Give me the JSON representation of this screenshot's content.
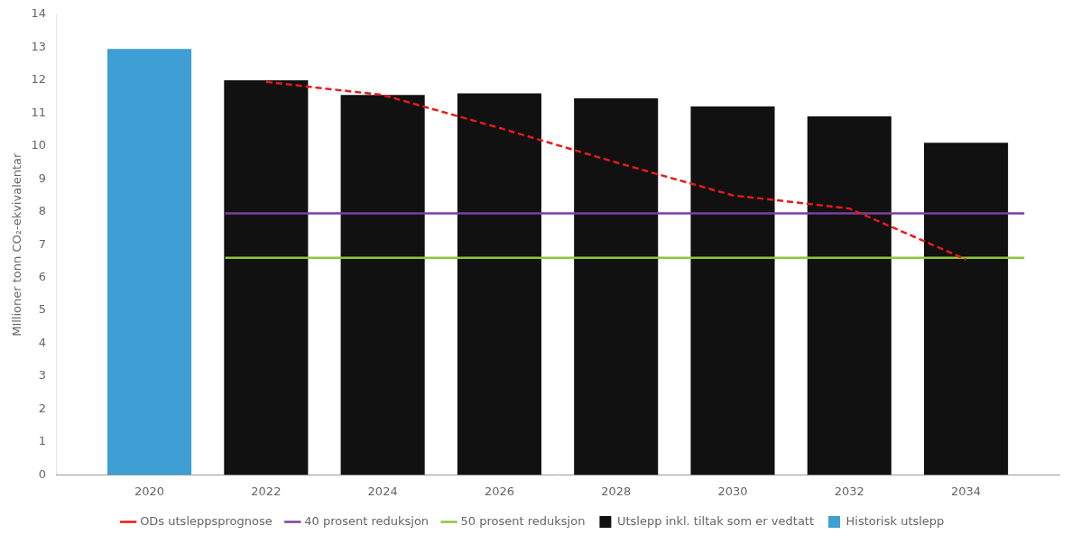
{
  "chart_data": {
    "type": "bar",
    "x": [
      2020,
      2022,
      2024,
      2026,
      2028,
      2030,
      2032,
      2034
    ],
    "ylabel": "MIllioner tonn CO₂-ekvivalentar",
    "xlim": [
      2018.4,
      2035.6
    ],
    "xticks": [
      2020,
      2022,
      2024,
      2026,
      2028,
      2030,
      2032,
      2034
    ],
    "ylim": [
      0,
      14
    ],
    "yticks": [
      0,
      1,
      2,
      3,
      4,
      5,
      6,
      7,
      8,
      9,
      10,
      11,
      12,
      13,
      14
    ],
    "grid": false,
    "legend": "bottom",
    "series": [
      {
        "name": "Utslepp inkl. tiltak som er vedtatt",
        "type": "bar",
        "color": "#111111",
        "values": [
          null,
          12.0,
          11.55,
          11.6,
          11.45,
          11.2,
          10.9,
          10.1
        ]
      },
      {
        "name": "ODs utsleppsprognose",
        "type": "line",
        "color": "#e8191a",
        "line_style": "dashed",
        "x": [
          2022,
          2024,
          2026,
          2028,
          2030,
          2032,
          2034
        ],
        "values": [
          11.95,
          11.55,
          10.55,
          9.5,
          8.5,
          8.1,
          6.55
        ]
      },
      {
        "name": "Historisk utslepp",
        "type": "bar",
        "color": "#3d9fd3",
        "values": [
          12.95,
          null,
          null,
          null,
          null,
          null,
          null,
          null
        ]
      },
      {
        "name": "40 prosent reduksjon",
        "type": "line",
        "color": "#7b3fa0",
        "line_style": "solid",
        "x": [
          2021.3,
          2035.0
        ],
        "values": [
          7.95,
          7.95
        ]
      },
      {
        "name": "50 prosent reduksjon",
        "type": "line",
        "color": "#8cc63f",
        "line_style": "solid",
        "x": [
          2021.3,
          2035.0
        ],
        "values": [
          6.6,
          6.6
        ]
      }
    ]
  }
}
